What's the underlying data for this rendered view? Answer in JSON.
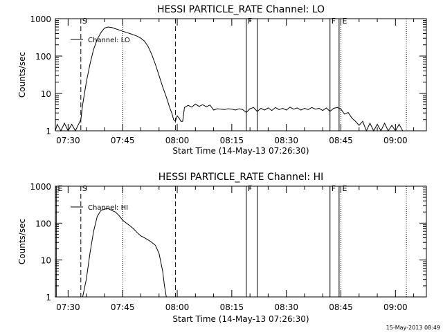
{
  "timestamp": "15-May-2013 08:49",
  "chart_data": [
    {
      "type": "line",
      "title": "HESSI PARTICLE_RATE Channel: LO",
      "xlabel": "Start Time (14-May-13 07:26:30)",
      "ylabel": "Counts/sec",
      "y_scale": "log",
      "ylim": [
        1,
        1000
      ],
      "yticks": [
        "1",
        "10",
        "100",
        "1000"
      ],
      "xlim": [
        "07:26:30",
        "09:08:30"
      ],
      "xticks": [
        "07:30",
        "07:45",
        "08:00",
        "08:15",
        "08:30",
        "08:45",
        "09:00"
      ],
      "legend": "Channel: LO",
      "legend_placement": "top-left",
      "markers": [
        {
          "time": "07:33:30",
          "style": "dashed",
          "label": "S"
        },
        {
          "time": "07:45:00",
          "style": "dotted",
          "label": ""
        },
        {
          "time": "07:59:30",
          "style": "dashed",
          "label": ""
        },
        {
          "time": "08:19:00",
          "style": "solid",
          "label": "F"
        },
        {
          "time": "08:22:00",
          "style": "solid",
          "label": ""
        },
        {
          "time": "08:42:00",
          "style": "solid",
          "label": "F"
        },
        {
          "time": "08:44:30",
          "style": "solid",
          "label": ""
        },
        {
          "time": "08:45:00",
          "style": "dotted",
          "label": "E"
        },
        {
          "time": "09:03:00",
          "style": "dotted",
          "label": ""
        }
      ],
      "series": [
        {
          "points": [
            [
              "07:26:30",
              1
            ],
            [
              "07:27:00",
              1.5
            ],
            [
              "07:28:00",
              1
            ],
            [
              "07:29:00",
              1.6
            ],
            [
              "07:30:00",
              1
            ],
            [
              "07:31:00",
              1.5
            ],
            [
              "07:32:00",
              1
            ],
            [
              "07:33:00",
              1.6
            ],
            [
              "07:33:30",
              2
            ],
            [
              "07:34:00",
              5
            ],
            [
              "07:35:00",
              20
            ],
            [
              "07:36:00",
              60
            ],
            [
              "07:37:00",
              150
            ],
            [
              "07:38:00",
              280
            ],
            [
              "07:39:00",
              420
            ],
            [
              "07:40:00",
              560
            ],
            [
              "07:41:00",
              600
            ],
            [
              "07:42:00",
              580
            ],
            [
              "07:43:00",
              540
            ],
            [
              "07:44:00",
              500
            ],
            [
              "07:45:00",
              460
            ],
            [
              "07:46:00",
              430
            ],
            [
              "07:47:00",
              400
            ],
            [
              "07:48:00",
              370
            ],
            [
              "07:49:00",
              340
            ],
            [
              "07:50:00",
              300
            ],
            [
              "07:51:00",
              250
            ],
            [
              "07:52:00",
              180
            ],
            [
              "07:53:00",
              110
            ],
            [
              "07:54:00",
              60
            ],
            [
              "07:55:00",
              30
            ],
            [
              "07:56:00",
              15
            ],
            [
              "07:57:00",
              8
            ],
            [
              "07:58:00",
              4
            ],
            [
              "07:58:30",
              3
            ],
            [
              "07:59:00",
              2
            ],
            [
              "07:59:30",
              1.8
            ],
            [
              "08:00:00",
              2.5
            ],
            [
              "08:00:30",
              2.2
            ],
            [
              "08:01:00",
              1.8
            ],
            [
              "08:01:30",
              1.8
            ],
            [
              "08:02:00",
              4.2
            ],
            [
              "08:03:00",
              4.8
            ],
            [
              "08:04:00",
              4.3
            ],
            [
              "08:05:00",
              5.2
            ],
            [
              "08:06:00",
              4.5
            ],
            [
              "08:07:00",
              5
            ],
            [
              "08:08:00",
              4.4
            ],
            [
              "08:09:00",
              4.9
            ],
            [
              "08:10:00",
              3.6
            ],
            [
              "08:11:00",
              3.9
            ],
            [
              "08:12:00",
              3.8
            ],
            [
              "08:13:00",
              3.7
            ],
            [
              "08:14:00",
              3.9
            ],
            [
              "08:15:00",
              3.8
            ],
            [
              "08:16:00",
              3.6
            ],
            [
              "08:17:00",
              3.9
            ],
            [
              "08:18:00",
              3.7
            ],
            [
              "08:19:00",
              3.1
            ],
            [
              "08:20:00",
              3.9
            ],
            [
              "08:21:00",
              4.2
            ],
            [
              "08:22:00",
              3.3
            ],
            [
              "08:23:00",
              4
            ],
            [
              "08:24:00",
              3.6
            ],
            [
              "08:25:00",
              4.1
            ],
            [
              "08:26:00",
              3.5
            ],
            [
              "08:27:00",
              4.2
            ],
            [
              "08:28:00",
              3.7
            ],
            [
              "08:29:00",
              4
            ],
            [
              "08:30:00",
              3.6
            ],
            [
              "08:31:00",
              4.3
            ],
            [
              "08:32:00",
              3.8
            ],
            [
              "08:33:00",
              4.1
            ],
            [
              "08:34:00",
              3.6
            ],
            [
              "08:35:00",
              4
            ],
            [
              "08:36:00",
              3.7
            ],
            [
              "08:37:00",
              4.2
            ],
            [
              "08:38:00",
              3.8
            ],
            [
              "08:39:00",
              4
            ],
            [
              "08:40:00",
              3.5
            ],
            [
              "08:41:00",
              4.1
            ],
            [
              "08:42:00",
              3.3
            ],
            [
              "08:43:00",
              4
            ],
            [
              "08:44:00",
              4.2
            ],
            [
              "08:45:00",
              3.8
            ],
            [
              "08:46:00",
              2.8
            ],
            [
              "08:47:00",
              3.1
            ],
            [
              "08:48:00",
              2.2
            ],
            [
              "08:49:00",
              1.8
            ],
            [
              "08:50:00",
              1.4
            ],
            [
              "08:51:00",
              1.8
            ],
            [
              "08:52:00",
              1
            ],
            [
              "08:53:00",
              1.6
            ],
            [
              "08:54:00",
              1
            ],
            [
              "08:55:00",
              1.5
            ],
            [
              "08:56:00",
              1
            ],
            [
              "08:57:00",
              1.6
            ],
            [
              "08:58:00",
              1
            ],
            [
              "08:59:00",
              1.4
            ],
            [
              "09:00:00",
              1
            ],
            [
              "09:01:00",
              1.5
            ],
            [
              "09:02:00",
              1
            ],
            [
              "09:03:00",
              1
            ]
          ]
        }
      ]
    },
    {
      "type": "line",
      "title": "HESSI PARTICLE_RATE Channel: HI",
      "xlabel": "Start Time (14-May-13 07:26:30)",
      "ylabel": "Counts/sec",
      "y_scale": "log",
      "ylim": [
        1,
        1000
      ],
      "yticks": [
        "1",
        "10",
        "100",
        "1000"
      ],
      "xlim": [
        "07:26:30",
        "09:08:30"
      ],
      "xticks": [
        "07:30",
        "07:45",
        "08:00",
        "08:15",
        "08:30",
        "08:45",
        "09:00"
      ],
      "legend": "Channel: HI",
      "legend_placement": "top-left",
      "markers": [
        {
          "time": "07:26:45",
          "style": "solid",
          "label": "E"
        },
        {
          "time": "07:33:30",
          "style": "dashed",
          "label": "S"
        },
        {
          "time": "07:45:00",
          "style": "dotted",
          "label": ""
        },
        {
          "time": "07:59:30",
          "style": "dashed",
          "label": ""
        },
        {
          "time": "08:19:00",
          "style": "solid",
          "label": "F"
        },
        {
          "time": "08:22:00",
          "style": "solid",
          "label": ""
        },
        {
          "time": "08:42:00",
          "style": "solid",
          "label": "F"
        },
        {
          "time": "08:44:30",
          "style": "solid",
          "label": ""
        },
        {
          "time": "08:45:00",
          "style": "dotted",
          "label": "E"
        },
        {
          "time": "09:03:00",
          "style": "dotted",
          "label": ""
        }
      ],
      "series": [
        {
          "points": [
            [
              "07:34:00",
              1
            ],
            [
              "07:35:00",
              3
            ],
            [
              "07:36:00",
              15
            ],
            [
              "07:37:00",
              60
            ],
            [
              "07:38:00",
              150
            ],
            [
              "07:39:00",
              220
            ],
            [
              "07:40:00",
              240
            ],
            [
              "07:41:00",
              250
            ],
            [
              "07:42:00",
              220
            ],
            [
              "07:43:00",
              200
            ],
            [
              "07:44:00",
              160
            ],
            [
              "07:45:00",
              120
            ],
            [
              "07:46:00",
              100
            ],
            [
              "07:47:00",
              85
            ],
            [
              "07:48:00",
              70
            ],
            [
              "07:49:00",
              55
            ],
            [
              "07:50:00",
              45
            ],
            [
              "07:51:00",
              40
            ],
            [
              "07:52:00",
              35
            ],
            [
              "07:53:00",
              30
            ],
            [
              "07:54:00",
              25
            ],
            [
              "07:55:00",
              15
            ],
            [
              "07:56:00",
              5
            ],
            [
              "07:56:30",
              2
            ],
            [
              "07:57:00",
              1
            ]
          ]
        }
      ]
    }
  ]
}
